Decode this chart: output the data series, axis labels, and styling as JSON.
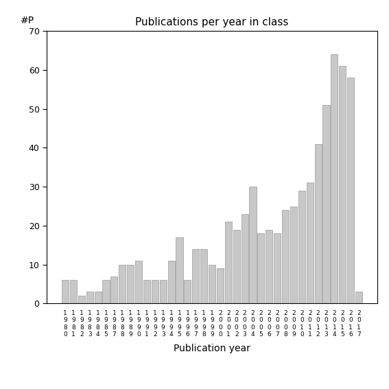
{
  "title": "Publications per year in class",
  "xlabel": "Publication year",
  "ylabel": "#P",
  "ylim": [
    0,
    70
  ],
  "yticks": [
    0,
    10,
    20,
    30,
    40,
    50,
    60,
    70
  ],
  "bar_color": "#c8c8c8",
  "bar_edgecolor": "#999999",
  "years": [
    "1\n9\n8\n0",
    "1\n9\n8\n1",
    "1\n9\n8\n2",
    "1\n9\n8\n3",
    "1\n9\n8\n4",
    "1\n9\n8\n5",
    "1\n9\n8\n7",
    "1\n9\n8\n8",
    "1\n9\n8\n9",
    "1\n9\n9\n0",
    "1\n9\n9\n1",
    "1\n9\n9\n2",
    "1\n9\n9\n3",
    "1\n9\n9\n4",
    "1\n9\n9\n5",
    "1\n9\n9\n6",
    "1\n9\n9\n7",
    "1\n9\n9\n8",
    "1\n9\n9\n9",
    "2\n0\n0\n0",
    "2\n0\n0\n1",
    "2\n0\n0\n2",
    "2\n0\n0\n3",
    "2\n0\n0\n4",
    "2\n0\n0\n5",
    "2\n0\n0\n6",
    "2\n0\n0\n7",
    "2\n0\n0\n8",
    "2\n0\n0\n9",
    "2\n0\n1\n0",
    "2\n0\n1\n1",
    "2\n0\n1\n2",
    "2\n0\n1\n3",
    "2\n0\n1\n4",
    "2\n0\n1\n5",
    "2\n0\n1\n6",
    "2\n0\n1\n7"
  ],
  "values": [
    6,
    6,
    2,
    3,
    3,
    6,
    7,
    10,
    10,
    11,
    6,
    6,
    6,
    11,
    17,
    6,
    14,
    14,
    10,
    9,
    21,
    19,
    23,
    30,
    18,
    19,
    18,
    24,
    25,
    29,
    31,
    41,
    51,
    64,
    61,
    58,
    3
  ],
  "figsize": [
    5.67,
    5.67
  ],
  "dpi": 100
}
